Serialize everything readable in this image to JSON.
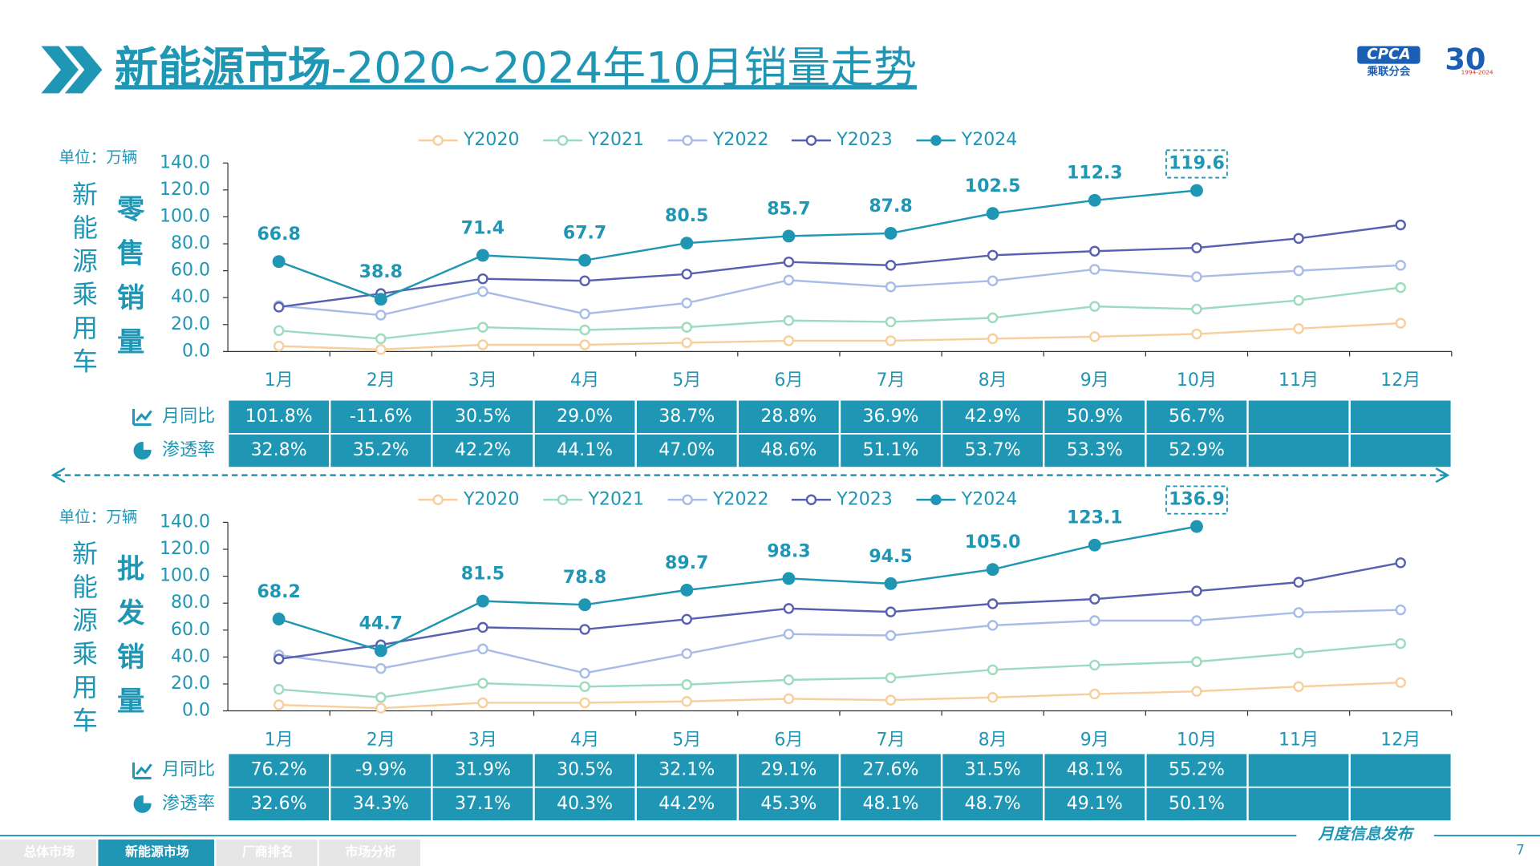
{
  "header": {
    "title": [
      "新能源市场",
      "-2020~2024年10月销量走势"
    ],
    "logo": {
      "name": "CPCA",
      "org": "乘联分会",
      "years": "30",
      "period": "1994-2024"
    }
  },
  "chart_data": [
    {
      "type": "line",
      "unit": "单位：万辆",
      "ylabel": "新能源乘用车",
      "title": "零售销量",
      "categories": [
        "1月",
        "2月",
        "3月",
        "4月",
        "5月",
        "6月",
        "7月",
        "8月",
        "9月",
        "10月",
        "11月",
        "12月"
      ],
      "ylim": [
        0,
        140
      ],
      "yticks": [
        {
          "value": 0,
          "label": "0.0"
        },
        {
          "value": 20,
          "label": "20.0"
        },
        {
          "value": 40,
          "label": "40.0"
        },
        {
          "value": 60,
          "label": "60.0"
        },
        {
          "value": 80,
          "label": "80.0"
        },
        {
          "value": 100,
          "label": "100.0"
        },
        {
          "value": 120,
          "label": "120.0"
        },
        {
          "value": 140,
          "label": "140.0"
        }
      ],
      "series": [
        {
          "name": "Y2020",
          "color": "#f7cf9c",
          "marker": "hollow",
          "values": [
            4,
            1.5,
            5,
            5,
            6.5,
            8,
            8,
            9.5,
            11,
            13,
            17,
            21
          ]
        },
        {
          "name": "Y2021",
          "color": "#9ddbbf",
          "marker": "hollow",
          "values": [
            15.5,
            9.5,
            18,
            16,
            18,
            23,
            22,
            25,
            33.5,
            31.5,
            38,
            47.5
          ]
        },
        {
          "name": "Y2022",
          "color": "#a8bce8",
          "marker": "hollow",
          "values": [
            34,
            27,
            44.5,
            28,
            36,
            53,
            48,
            52.5,
            61,
            55.5,
            60,
            64
          ]
        },
        {
          "name": "Y2023",
          "color": "#5860b0",
          "marker": "hollow",
          "values": [
            33,
            43,
            54,
            52.5,
            57.5,
            66.5,
            64,
            71.5,
            74.5,
            77,
            84,
            94
          ]
        },
        {
          "name": "Y2024",
          "color": "#1e96b4",
          "marker": "filled",
          "values": [
            66.8,
            38.8,
            71.4,
            67.7,
            80.5,
            85.7,
            87.8,
            102.5,
            112.3,
            119.6,
            null,
            null
          ]
        }
      ]
    },
    {
      "type": "line",
      "unit": "单位：万辆",
      "ylabel": "新能源乘用车",
      "title": "批发销量",
      "categories": [
        "1月",
        "2月",
        "3月",
        "4月",
        "5月",
        "6月",
        "7月",
        "8月",
        "9月",
        "10月",
        "11月",
        "12月"
      ],
      "ylim": [
        0,
        140
      ],
      "yticks": [
        {
          "value": 0,
          "label": "0.0"
        },
        {
          "value": 20,
          "label": "20.0"
        },
        {
          "value": 40,
          "label": "40.0"
        },
        {
          "value": 60,
          "label": "60.0"
        },
        {
          "value": 80,
          "label": "80.0"
        },
        {
          "value": 100,
          "label": "100.0"
        },
        {
          "value": 120,
          "label": "120.0"
        },
        {
          "value": 140,
          "label": "140.0"
        }
      ],
      "series": [
        {
          "name": "Y2020",
          "color": "#f7cf9c",
          "marker": "hollow",
          "values": [
            4.5,
            2,
            6,
            6,
            7,
            9,
            8,
            10,
            12.5,
            14.5,
            18,
            21
          ]
        },
        {
          "name": "Y2021",
          "color": "#9ddbbf",
          "marker": "hollow",
          "values": [
            16,
            10,
            20.5,
            18,
            19.5,
            23,
            24.5,
            30.5,
            34,
            36.5,
            43,
            50
          ]
        },
        {
          "name": "Y2022",
          "color": "#a8bce8",
          "marker": "hollow",
          "values": [
            41.5,
            31.5,
            46,
            28,
            42.5,
            57,
            56,
            63.5,
            67,
            67,
            73,
            75
          ]
        },
        {
          "name": "Y2023",
          "color": "#5860b0",
          "marker": "hollow",
          "values": [
            38.5,
            49,
            62,
            60.5,
            68,
            76,
            73.5,
            79.5,
            83,
            89,
            95.5,
            110
          ]
        },
        {
          "name": "Y2024",
          "color": "#1e96b4",
          "marker": "filled",
          "values": [
            68.2,
            44.7,
            81.5,
            78.8,
            89.7,
            98.3,
            94.5,
            105,
            123.1,
            136.9,
            null,
            null
          ],
          "value_labels": [
            "68.2",
            "44.7",
            "81.5",
            "78.8",
            "89.7",
            "98.3",
            "94.5",
            "105.0",
            "123.1",
            "136.9",
            null,
            null
          ]
        }
      ]
    }
  ],
  "tables": [
    {
      "rows": [
        {
          "label": "月同比",
          "cells": [
            "101.8%",
            "-11.6%",
            "30.5%",
            "29.0%",
            "38.7%",
            "28.8%",
            "36.9%",
            "42.9%",
            "50.9%",
            "56.7%"
          ]
        },
        {
          "label": "渗透率",
          "cells": [
            "32.8%",
            "35.2%",
            "42.2%",
            "44.1%",
            "47.0%",
            "48.6%",
            "51.1%",
            "53.7%",
            "53.3%",
            "52.9%"
          ]
        }
      ]
    },
    {
      "rows": [
        {
          "label": "月同比",
          "cells": [
            "76.2%",
            "-9.9%",
            "31.9%",
            "30.5%",
            "32.1%",
            "29.1%",
            "27.6%",
            "31.5%",
            "48.1%",
            "55.2%"
          ]
        },
        {
          "label": "渗透率",
          "cells": [
            "32.6%",
            "34.3%",
            "37.1%",
            "40.3%",
            "44.2%",
            "45.3%",
            "48.1%",
            "48.7%",
            "49.1%",
            "50.1%"
          ]
        }
      ]
    }
  ],
  "footer": {
    "tabs": [
      "总体市场",
      "新能源市场",
      "厂商排名",
      "市场分析"
    ],
    "active_tab": 1,
    "note": "月度信息发布",
    "page": "7"
  }
}
